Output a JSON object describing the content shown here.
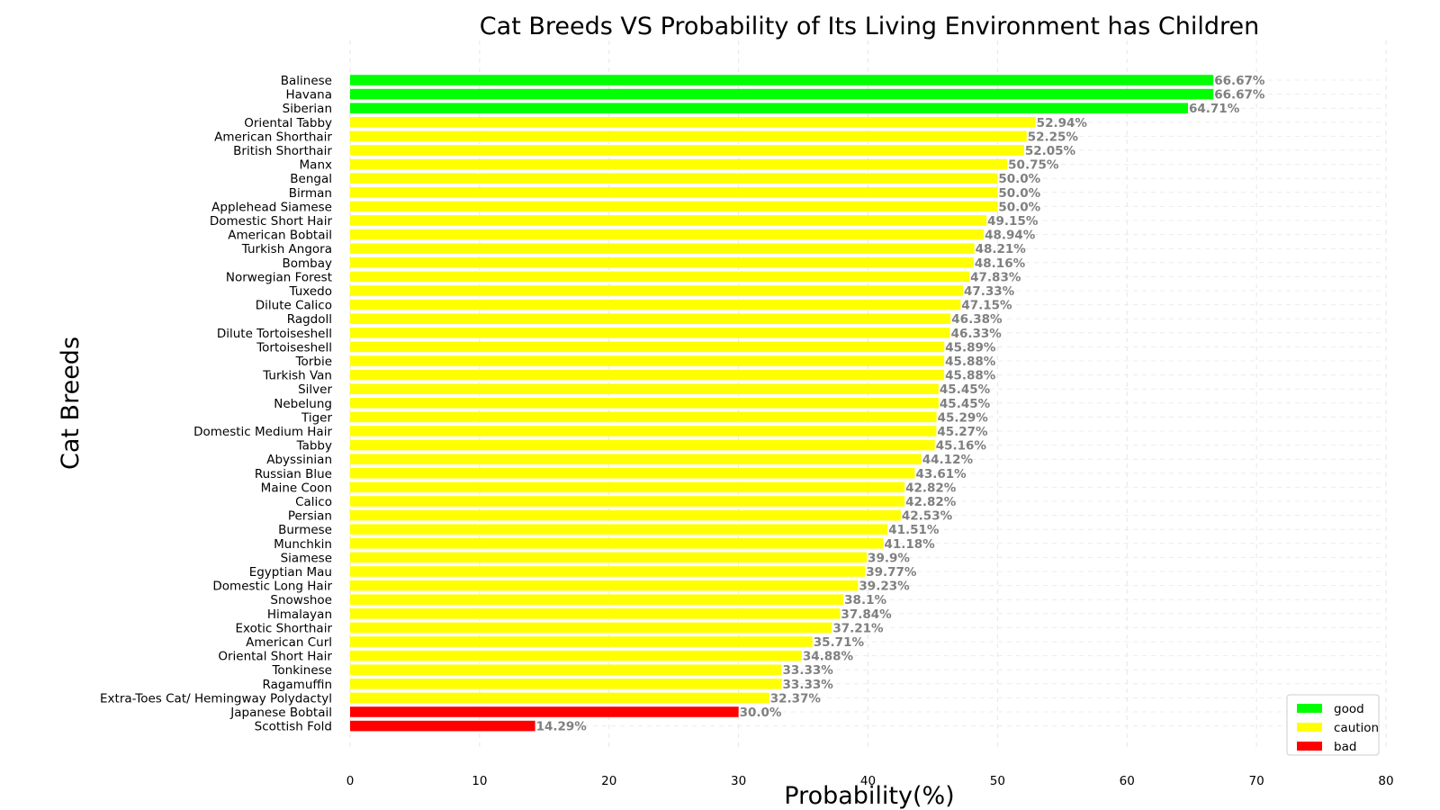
{
  "chart_data": {
    "type": "bar",
    "orientation": "horizontal",
    "title": "Cat Breeds VS Probability of Its Living Environment has Children",
    "xlabel": "Probability(%)",
    "ylabel": "Cat Breeds",
    "xlim": [
      0,
      80
    ],
    "xticks": [
      "0",
      "10",
      "20",
      "30",
      "40",
      "50",
      "60",
      "70",
      "80"
    ],
    "grid": "dashed, light",
    "legend_position": "bottom-right",
    "legend": [
      {
        "label": "good",
        "color": "#00ff00"
      },
      {
        "label": "caution",
        "color": "#ffff00"
      },
      {
        "label": "bad",
        "color": "#ff0000"
      }
    ],
    "categories": [
      "Balinese",
      "Havana",
      "Siberian",
      "Oriental Tabby",
      "American Shorthair",
      "British Shorthair",
      "Manx",
      "Bengal",
      "Birman",
      "Applehead Siamese",
      "Domestic Short Hair",
      "American Bobtail",
      "Turkish Angora",
      "Bombay",
      "Norwegian Forest",
      "Tuxedo",
      "Dilute Calico",
      "Ragdoll",
      "Dilute Tortoiseshell",
      "Tortoiseshell",
      "Torbie",
      "Turkish Van",
      "Silver",
      "Nebelung",
      "Tiger",
      "Domestic Medium Hair",
      "Tabby",
      "Abyssinian",
      "Russian Blue",
      "Maine Coon",
      "Calico",
      "Persian",
      "Burmese",
      "Munchkin",
      "Siamese",
      "Egyptian Mau",
      "Domestic Long Hair",
      "Snowshoe",
      "Himalayan",
      "Exotic Shorthair",
      "American Curl",
      "Oriental Short Hair",
      "Tonkinese",
      "Ragamuffin",
      "Extra-Toes Cat/ Hemingway Polydactyl",
      "Japanese Bobtail",
      "Scottish Fold"
    ],
    "values": [
      66.67,
      66.67,
      64.71,
      52.94,
      52.25,
      52.05,
      50.75,
      50.0,
      50.0,
      50.0,
      49.15,
      48.94,
      48.21,
      48.16,
      47.83,
      47.33,
      47.15,
      46.38,
      46.33,
      45.89,
      45.88,
      45.88,
      45.45,
      45.45,
      45.29,
      45.27,
      45.16,
      44.12,
      43.61,
      42.82,
      42.82,
      42.53,
      41.51,
      41.18,
      39.9,
      39.77,
      39.23,
      38.1,
      37.84,
      37.21,
      35.71,
      34.88,
      33.33,
      33.33,
      32.37,
      30.0,
      14.29
    ],
    "value_labels": [
      "66.67%",
      "66.67%",
      "64.71%",
      "52.94%",
      "52.25%",
      "52.05%",
      "50.75%",
      "50.0%",
      "50.0%",
      "50.0%",
      "49.15%",
      "48.94%",
      "48.21%",
      "48.16%",
      "47.83%",
      "47.33%",
      "47.15%",
      "46.38%",
      "46.33%",
      "45.89%",
      "45.88%",
      "45.88%",
      "45.45%",
      "45.45%",
      "45.29%",
      "45.27%",
      "45.16%",
      "44.12%",
      "43.61%",
      "42.82%",
      "42.82%",
      "42.53%",
      "41.51%",
      "41.18%",
      "39.9%",
      "39.77%",
      "39.23%",
      "38.1%",
      "37.84%",
      "37.21%",
      "35.71%",
      "34.88%",
      "33.33%",
      "33.33%",
      "32.37%",
      "30.0%",
      "14.29%"
    ],
    "status": [
      "good",
      "good",
      "good",
      "caution",
      "caution",
      "caution",
      "caution",
      "caution",
      "caution",
      "caution",
      "caution",
      "caution",
      "caution",
      "caution",
      "caution",
      "caution",
      "caution",
      "caution",
      "caution",
      "caution",
      "caution",
      "caution",
      "caution",
      "caution",
      "caution",
      "caution",
      "caution",
      "caution",
      "caution",
      "caution",
      "caution",
      "caution",
      "caution",
      "caution",
      "caution",
      "caution",
      "caution",
      "caution",
      "caution",
      "caution",
      "caution",
      "caution",
      "caution",
      "caution",
      "caution",
      "bad",
      "bad"
    ]
  }
}
